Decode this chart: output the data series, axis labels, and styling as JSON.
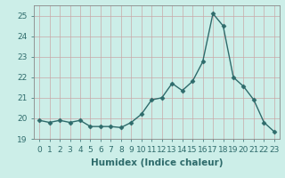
{
  "x": [
    0,
    1,
    2,
    3,
    4,
    5,
    6,
    7,
    8,
    9,
    10,
    11,
    12,
    13,
    14,
    15,
    16,
    17,
    18,
    19,
    20,
    21,
    22,
    23
  ],
  "y": [
    19.9,
    19.8,
    19.9,
    19.8,
    19.9,
    19.6,
    19.6,
    19.6,
    19.55,
    19.8,
    20.2,
    20.9,
    21.0,
    21.7,
    21.35,
    21.8,
    22.75,
    25.1,
    24.5,
    22.0,
    21.55,
    20.9,
    19.8,
    19.35
  ],
  "xlabel": "Humidex (Indice chaleur)",
  "ylim": [
    19,
    25.5
  ],
  "xlim": [
    -0.5,
    23.5
  ],
  "yticks": [
    19,
    20,
    21,
    22,
    23,
    24,
    25
  ],
  "xticks": [
    0,
    1,
    2,
    3,
    4,
    5,
    6,
    7,
    8,
    9,
    10,
    11,
    12,
    13,
    14,
    15,
    16,
    17,
    18,
    19,
    20,
    21,
    22,
    23
  ],
  "line_color": "#2e6b6b",
  "marker": "D",
  "marker_size": 2.5,
  "line_width": 1.0,
  "bg_color": "#cceee8",
  "grid_major_color": "#b8d8d8",
  "grid_minor_color": "#d4ecec",
  "tick_label_fontsize": 6.5,
  "xlabel_fontsize": 7.5
}
